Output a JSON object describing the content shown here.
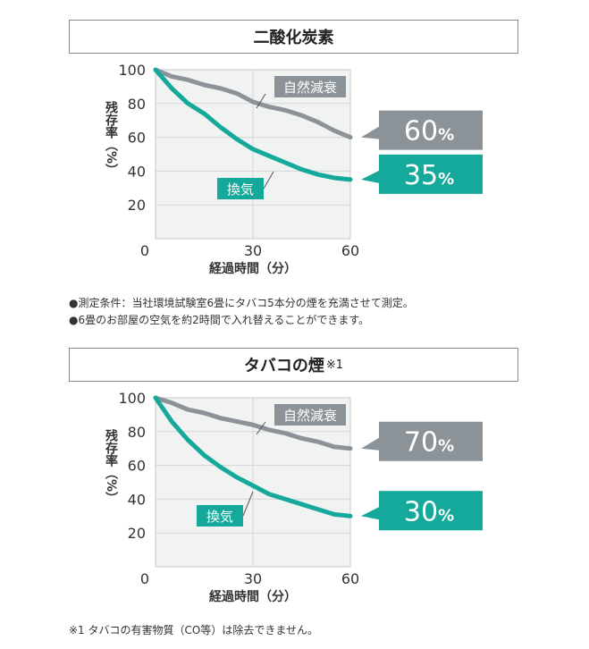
{
  "colors": {
    "accent": "#14a99a",
    "gray": "#8b9399",
    "plot_bg": "#f1f2f2",
    "grid": "#d4d6d7"
  },
  "section1": {
    "title": "二酸化炭素",
    "notes": [
      "●測定条件：当社環境試験室6畳にタバコ5本分の煙を充満させて測定。",
      "●6畳のお部屋の空気を約2時間で入れ替えることができます。"
    ]
  },
  "section2": {
    "title": "タバコの煙",
    "title_sup": "※1",
    "footnote": "※1 タバコの有害物質（CO等）は除去できません。"
  },
  "chart_data": [
    {
      "type": "line",
      "title": "二酸化炭素",
      "xlabel": "経過時間（分）",
      "ylabel": "残存率（%）",
      "xlim": [
        0,
        60
      ],
      "ylim": [
        0,
        100
      ],
      "x_ticks": [
        "0",
        "30",
        "60"
      ],
      "y_ticks": [
        "100",
        "80",
        "60",
        "40",
        "20"
      ],
      "series": [
        {
          "name": "自然減衰",
          "x": [
            0,
            5,
            10,
            15,
            20,
            25,
            30,
            35,
            40,
            45,
            50,
            55,
            60
          ],
          "values": [
            100,
            96,
            94,
            91,
            89,
            86,
            81,
            78,
            76,
            73,
            69,
            64,
            60
          ],
          "end_label": "60",
          "end_unit": "%"
        },
        {
          "name": "換気",
          "x": [
            0,
            5,
            10,
            15,
            20,
            25,
            30,
            35,
            40,
            45,
            50,
            55,
            60
          ],
          "values": [
            100,
            89,
            80,
            74,
            66,
            59,
            53,
            49,
            45,
            41,
            38,
            36,
            35
          ],
          "end_label": "35",
          "end_unit": "%"
        }
      ]
    },
    {
      "type": "line",
      "title": "タバコの煙",
      "xlabel": "経過時間（分）",
      "ylabel": "残存率（%）",
      "xlim": [
        0,
        60
      ],
      "ylim": [
        0,
        100
      ],
      "x_ticks": [
        "0",
        "30",
        "60"
      ],
      "y_ticks": [
        "100",
        "80",
        "60",
        "40",
        "20"
      ],
      "series": [
        {
          "name": "自然減衰",
          "x": [
            0,
            5,
            10,
            15,
            20,
            25,
            30,
            35,
            40,
            45,
            50,
            55,
            60
          ],
          "values": [
            100,
            97,
            93,
            91,
            88,
            86,
            84,
            81,
            79,
            76,
            74,
            71,
            70
          ],
          "end_label": "70",
          "end_unit": "%"
        },
        {
          "name": "換気",
          "x": [
            0,
            5,
            10,
            15,
            20,
            25,
            30,
            35,
            40,
            45,
            50,
            55,
            60
          ],
          "values": [
            100,
            86,
            75,
            66,
            59,
            53,
            48,
            43,
            40,
            37,
            34,
            31,
            30
          ],
          "end_label": "30",
          "end_unit": "%"
        }
      ]
    }
  ]
}
